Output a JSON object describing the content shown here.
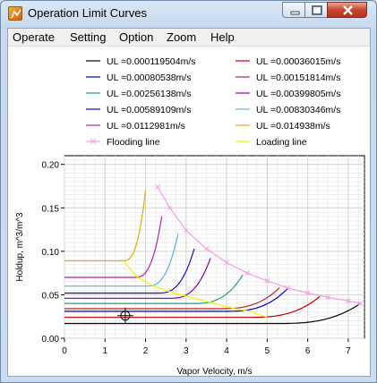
{
  "window": {
    "title": "Operation Limit Curves"
  },
  "menu": [
    "Operate",
    "Setting",
    "Option",
    "Zoom",
    "Help"
  ],
  "colors": {
    "flooding": "#f2a0e0",
    "loading": "#f4f400"
  },
  "chart_data": {
    "type": "line",
    "xlabel": "Vapor Velocity, m/s",
    "ylabel": "Holdup, m^3/m^3",
    "xlim": [
      0,
      7.4
    ],
    "ylim": [
      0,
      0.21
    ],
    "xticks": [
      "0",
      "1",
      "2",
      "3",
      "4",
      "5",
      "6",
      "7"
    ],
    "yticks": [
      "0.00",
      "0.05",
      "0.10",
      "0.15",
      "0.20"
    ],
    "grid": true,
    "legend_position": "top, two columns",
    "series": [
      {
        "name": "UL =0.000119504m/s",
        "color": "#000000",
        "flat": 0.017,
        "xf": 7.3,
        "yf": 0.04
      },
      {
        "name": "UL =0.00036015m/s",
        "color": "#c00000",
        "flat": 0.024,
        "xf": 6.3,
        "yf": 0.048
      },
      {
        "name": "UL =0.00080538m/s",
        "color": "#0000d0",
        "flat": 0.031,
        "xf": 5.5,
        "yf": 0.057
      },
      {
        "name": "UL =0.00151814m/s",
        "color": "#c02030",
        "flat": 0.034,
        "xf": 5.3,
        "yf": 0.058
      },
      {
        "name": "UL =0.00256138m/s",
        "color": "#20a070",
        "flat": 0.04,
        "xf": 4.4,
        "yf": 0.073
      },
      {
        "name": "UL =0.00399805m/s",
        "color": "#8000a0",
        "flat": 0.046,
        "xf": 3.6,
        "yf": 0.092
      },
      {
        "name": "UL =0.00589109m/s",
        "color": "#1010c0",
        "flat": 0.052,
        "xf": 3.2,
        "yf": 0.103
      },
      {
        "name": "UL =0.00830346m/s",
        "color": "#60b0e0",
        "flat": 0.06,
        "xf": 2.8,
        "yf": 0.12
      },
      {
        "name": "UL =0.0112981m/s",
        "color": "#b020b0",
        "flat": 0.07,
        "xf": 2.4,
        "yf": 0.14
      },
      {
        "name": "UL =0.014938m/s",
        "color": "#e0b000",
        "flat": 0.089,
        "xf": 2.0,
        "yf": 0.17
      },
      {
        "name": "Flooding line",
        "color": "#f2a0e0",
        "x": [
          2.3,
          2.6,
          3.0,
          3.5,
          4.0,
          4.5,
          5.0,
          5.5,
          6.0,
          6.5,
          7.0,
          7.3
        ],
        "y": [
          0.174,
          0.15,
          0.124,
          0.103,
          0.087,
          0.075,
          0.066,
          0.058,
          0.052,
          0.047,
          0.043,
          0.04
        ]
      },
      {
        "name": "Loading line",
        "color": "#f4f400",
        "x": [
          1.45,
          1.8,
          2.2,
          2.7,
          3.2,
          3.7,
          4.2,
          4.6,
          5.0
        ],
        "y": [
          0.089,
          0.07,
          0.06,
          0.052,
          0.046,
          0.04,
          0.034,
          0.031,
          0.024
        ]
      }
    ],
    "cursor": {
      "x": 1.5,
      "y": 0.026
    }
  }
}
